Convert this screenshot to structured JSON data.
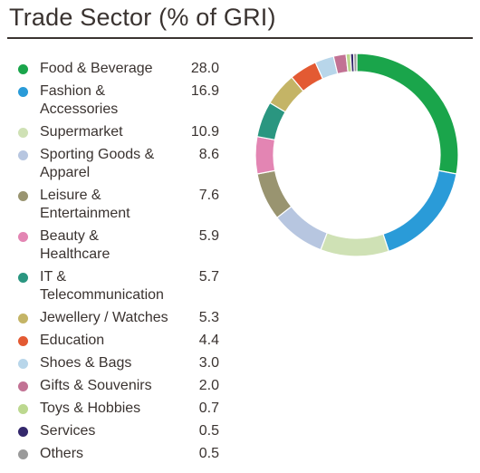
{
  "header": {
    "title": "Trade Sector (% of GRI)"
  },
  "chart_data": {
    "type": "pie",
    "style": "donut",
    "title": "Trade Sector (% of GRI)",
    "legend_position": "left",
    "categories": [
      "Food & Beverage",
      "Fashion & Accessories",
      "Supermarket",
      "Sporting Goods & Apparel",
      "Leisure & Entertainment",
      "Beauty & Healthcare",
      "IT & Telecommunication",
      "Jewellery / Watches",
      "Education",
      "Shoes & Bags",
      "Gifts & Souvenirs",
      "Toys & Hobbies",
      "Services",
      "Others"
    ],
    "legend_labels": [
      [
        "Food & Beverage"
      ],
      [
        "Fashion &",
        "Accessories"
      ],
      [
        "Supermarket"
      ],
      [
        "Sporting Goods &",
        "Apparel"
      ],
      [
        "Leisure &",
        "Entertainment"
      ],
      [
        "Beauty &",
        "Healthcare"
      ],
      [
        "IT &",
        "Telecommunication"
      ],
      [
        "Jewellery / Watches"
      ],
      [
        "Education"
      ],
      [
        "Shoes & Bags"
      ],
      [
        "Gifts & Souvenirs"
      ],
      [
        "Toys & Hobbies"
      ],
      [
        "Services"
      ],
      [
        "Others"
      ]
    ],
    "values": [
      28.0,
      16.9,
      10.9,
      8.6,
      7.6,
      5.9,
      5.7,
      5.3,
      4.4,
      3.0,
      2.0,
      0.7,
      0.5,
      0.5
    ],
    "value_labels": [
      "28.0",
      "16.9",
      "10.9",
      "8.6",
      "7.6",
      "5.9",
      "5.7",
      "5.3",
      "4.4",
      "3.0",
      "2.0",
      "0.7",
      "0.5",
      "0.5"
    ],
    "colors": [
      "#1aa54b",
      "#2a9bd8",
      "#cfe1b5",
      "#b7c6e0",
      "#999470",
      "#e385b3",
      "#2a9680",
      "#c4b466",
      "#e35a33",
      "#b8d6ea",
      "#c27294",
      "#bcd88f",
      "#34286c",
      "#9a9a9a"
    ]
  }
}
